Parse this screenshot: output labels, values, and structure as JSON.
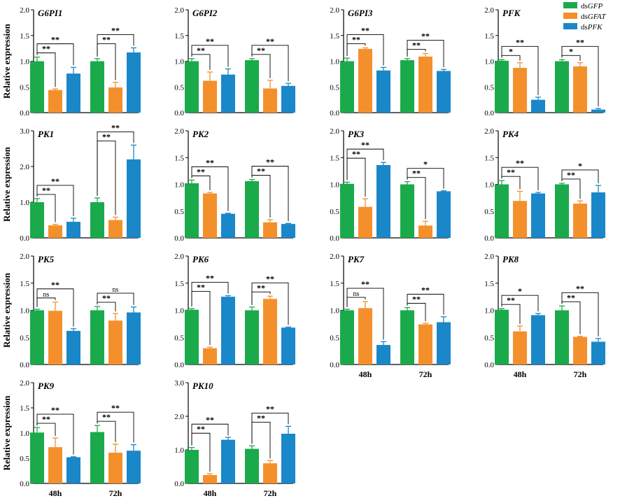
{
  "figure": {
    "ylabel": "Relative expression",
    "categories": [
      "48h",
      "72h"
    ],
    "legend": [
      {
        "pre": "ds",
        "italic": "GFP",
        "color": "#1aaa4b"
      },
      {
        "pre": "ds",
        "italic": "GFAT",
        "color": "#f4902c"
      },
      {
        "pre": "ds",
        "italic": "PFK",
        "color": "#1a87c9"
      }
    ]
  },
  "chart_data": [
    {
      "type": "bar",
      "title": "G6PI1",
      "ylim": [
        0,
        2
      ],
      "ticks": [
        "0.0",
        "0.5",
        "1.0",
        "1.5",
        "2.0"
      ],
      "categories": [
        "48h",
        "72h"
      ],
      "series": [
        {
          "name": "dsGFP",
          "values": [
            1.0,
            1.0
          ],
          "err": [
            0.08,
            0.05
          ]
        },
        {
          "name": "dsGFAT",
          "values": [
            0.44,
            0.49
          ],
          "err": [
            0.02,
            0.1
          ]
        },
        {
          "name": "dsPFK",
          "values": [
            0.76,
            1.17
          ],
          "err": [
            0.12,
            0.09
          ]
        }
      ],
      "sig": [
        [
          {
            "label": "**",
            "lvl": 1
          },
          {
            "label": "**",
            "lvl": 2
          }
        ],
        [
          {
            "label": "**",
            "lvl": 1
          },
          {
            "label": "**",
            "lvl": 2
          }
        ]
      ]
    },
    {
      "type": "bar",
      "title": "G6PI2",
      "ylim": [
        0,
        2
      ],
      "ticks": [
        "0.0",
        "0.5",
        "1.0",
        "1.5",
        "2.0"
      ],
      "categories": [
        "48h",
        "72h"
      ],
      "series": [
        {
          "name": "dsGFP",
          "values": [
            1.0,
            1.02
          ],
          "err": [
            0.05,
            0.03
          ]
        },
        {
          "name": "dsGFAT",
          "values": [
            0.62,
            0.47
          ],
          "err": [
            0.17,
            0.16
          ]
        },
        {
          "name": "dsPFK",
          "values": [
            0.74,
            0.52
          ],
          "err": [
            0.11,
            0.05
          ]
        }
      ],
      "sig": [
        [
          {
            "label": "**",
            "lvl": 1
          },
          {
            "label": "**",
            "lvl": 2
          }
        ],
        [
          {
            "label": "**",
            "lvl": 1
          },
          {
            "label": "**",
            "lvl": 2
          }
        ]
      ]
    },
    {
      "type": "bar",
      "title": "G6PI3",
      "ylim": [
        0,
        2
      ],
      "ticks": [
        "0.0",
        "0.5",
        "1.0",
        "1.5",
        "2.0"
      ],
      "categories": [
        "48h",
        "72h"
      ],
      "series": [
        {
          "name": "dsGFP",
          "values": [
            1.0,
            1.02
          ],
          "err": [
            0.06,
            0.03
          ]
        },
        {
          "name": "dsGFAT",
          "values": [
            1.24,
            1.09
          ],
          "err": [
            0.02,
            0.06
          ]
        },
        {
          "name": "dsPFK",
          "values": [
            0.82,
            0.81
          ],
          "err": [
            0.06,
            0.03
          ]
        }
      ],
      "sig": [
        [
          {
            "label": "**",
            "lvl": 1
          },
          {
            "label": "**",
            "lvl": 2
          }
        ],
        [
          {
            "label": "**",
            "lvl": 1
          },
          {
            "label": "**",
            "lvl": 2
          }
        ]
      ]
    },
    {
      "type": "bar",
      "title": "PFK",
      "ylim": [
        0,
        2
      ],
      "ticks": [
        "0.0",
        "0.5",
        "1.0",
        "1.5",
        "2.0"
      ],
      "categories": [
        "48h",
        "72h"
      ],
      "series": [
        {
          "name": "dsGFP",
          "values": [
            1.01,
            1.0
          ],
          "err": [
            0.02,
            0.03
          ]
        },
        {
          "name": "dsGFAT",
          "values": [
            0.87,
            0.9
          ],
          "err": [
            0.1,
            0.07
          ]
        },
        {
          "name": "dsPFK",
          "values": [
            0.25,
            0.06
          ],
          "err": [
            0.05,
            0.02
          ]
        }
      ],
      "sig": [
        [
          {
            "label": "*",
            "lvl": 1
          },
          {
            "label": "**",
            "lvl": 2
          }
        ],
        [
          {
            "label": "*",
            "lvl": 1
          },
          {
            "label": "**",
            "lvl": 2
          }
        ]
      ]
    },
    {
      "type": "bar",
      "title": "PK1",
      "ylim": [
        0,
        3
      ],
      "ticks": [
        "0.0",
        "1.0",
        "2.0",
        "3.0"
      ],
      "categories": [
        "48h",
        "72h"
      ],
      "series": [
        {
          "name": "dsGFP",
          "values": [
            1.0,
            1.0
          ],
          "err": [
            0.1,
            0.12
          ]
        },
        {
          "name": "dsGFAT",
          "values": [
            0.35,
            0.5
          ],
          "err": [
            0.03,
            0.08
          ]
        },
        {
          "name": "dsPFK",
          "values": [
            0.45,
            2.2
          ],
          "err": [
            0.1,
            0.4
          ]
        }
      ],
      "sig": [
        [
          {
            "label": "**",
            "lvl": 1
          },
          {
            "label": "**",
            "lvl": 2
          }
        ],
        [
          {
            "label": "**",
            "lvl": 1
          },
          {
            "label": "**",
            "lvl": 2
          }
        ]
      ]
    },
    {
      "type": "bar",
      "title": "PK2",
      "ylim": [
        0,
        2
      ],
      "ticks": [
        "0.0",
        "0.5",
        "1.0",
        "1.5",
        "2.0"
      ],
      "categories": [
        "48h",
        "72h"
      ],
      "series": [
        {
          "name": "dsGFP",
          "values": [
            1.02,
            1.06
          ],
          "err": [
            0.06,
            0.03
          ]
        },
        {
          "name": "dsGFAT",
          "values": [
            0.83,
            0.29
          ],
          "err": [
            0.02,
            0.05
          ]
        },
        {
          "name": "dsPFK",
          "values": [
            0.45,
            0.26
          ],
          "err": [
            0.01,
            0.01
          ]
        }
      ],
      "sig": [
        [
          {
            "label": "**",
            "lvl": 1
          },
          {
            "label": "**",
            "lvl": 2
          }
        ],
        [
          {
            "label": "**",
            "lvl": 1
          },
          {
            "label": "**",
            "lvl": 2
          }
        ]
      ]
    },
    {
      "type": "bar",
      "title": "PK3",
      "ylim": [
        0,
        2
      ],
      "ticks": [
        "0.0",
        "0.5",
        "1.0",
        "1.5",
        "2.0"
      ],
      "categories": [
        "48h",
        "72h"
      ],
      "series": [
        {
          "name": "dsGFP",
          "values": [
            1.01,
            1.0
          ],
          "err": [
            0.03,
            0.05
          ]
        },
        {
          "name": "dsGFAT",
          "values": [
            0.58,
            0.23
          ],
          "err": [
            0.15,
            0.08
          ]
        },
        {
          "name": "dsPFK",
          "values": [
            1.36,
            0.87
          ],
          "err": [
            0.05,
            0.01
          ]
        }
      ],
      "sig": [
        [
          {
            "label": "**",
            "lvl": 1
          },
          {
            "label": "**",
            "lvl": 2
          }
        ],
        [
          {
            "label": "**",
            "lvl": 1
          },
          {
            "label": "*",
            "lvl": 2
          }
        ]
      ]
    },
    {
      "type": "bar",
      "title": "PK4",
      "ylim": [
        0,
        2
      ],
      "ticks": [
        "0.0",
        "0.5",
        "1.0",
        "1.5",
        "2.0"
      ],
      "categories": [
        "48h",
        "72h"
      ],
      "series": [
        {
          "name": "dsGFP",
          "values": [
            1.0,
            1.0
          ],
          "err": [
            0.07,
            0.02
          ]
        },
        {
          "name": "dsGFAT",
          "values": [
            0.69,
            0.64
          ],
          "err": [
            0.18,
            0.05
          ]
        },
        {
          "name": "dsPFK",
          "values": [
            0.83,
            0.85
          ],
          "err": [
            0.02,
            0.13
          ]
        }
      ],
      "sig": [
        [
          {
            "label": "**",
            "lvl": 1
          },
          {
            "label": "**",
            "lvl": 2
          }
        ],
        [
          {
            "label": "**",
            "lvl": 1
          },
          {
            "label": "*",
            "lvl": 2
          }
        ]
      ]
    },
    {
      "type": "bar",
      "title": "PK5",
      "ylim": [
        0,
        2
      ],
      "ticks": [
        "0.0",
        "0.5",
        "1.0",
        "1.5",
        "2.0"
      ],
      "categories": [
        "48h",
        "72h"
      ],
      "series": [
        {
          "name": "dsGFP",
          "values": [
            1.0,
            1.0
          ],
          "err": [
            0.02,
            0.07
          ]
        },
        {
          "name": "dsGFAT",
          "values": [
            0.99,
            0.81
          ],
          "err": [
            0.16,
            0.13
          ]
        },
        {
          "name": "dsPFK",
          "values": [
            0.62,
            0.96
          ],
          "err": [
            0.04,
            0.1
          ]
        }
      ],
      "sig": [
        [
          {
            "label": "ns",
            "lvl": 1
          },
          {
            "label": "**",
            "lvl": 2
          }
        ],
        [
          {
            "label": "**",
            "lvl": 1
          },
          {
            "label": "ns",
            "lvl": 2
          }
        ]
      ]
    },
    {
      "type": "bar",
      "title": "PK6",
      "ylim": [
        0,
        2
      ],
      "ticks": [
        "0.0",
        "0.5",
        "1.0",
        "1.5",
        "2.0"
      ],
      "categories": [
        "48h",
        "72h"
      ],
      "series": [
        {
          "name": "dsGFP",
          "values": [
            1.01,
            1.0
          ],
          "err": [
            0.02,
            0.06
          ]
        },
        {
          "name": "dsGFAT",
          "values": [
            0.3,
            1.21
          ],
          "err": [
            0.02,
            0.05
          ]
        },
        {
          "name": "dsPFK",
          "values": [
            1.25,
            0.68
          ],
          "err": [
            0.02,
            0.01
          ]
        }
      ],
      "sig": [
        [
          {
            "label": "**",
            "lvl": 1
          },
          {
            "label": "**",
            "lvl": 2
          }
        ],
        [
          {
            "label": "**",
            "lvl": 1
          },
          {
            "label": "**",
            "lvl": 2
          }
        ]
      ]
    },
    {
      "type": "bar",
      "title": "PK7",
      "ylim": [
        0,
        2
      ],
      "ticks": [
        "0.0",
        "0.5",
        "1.0",
        "1.5",
        "2.0"
      ],
      "categories": [
        "48h",
        "72h"
      ],
      "series": [
        {
          "name": "dsGFP",
          "values": [
            1.0,
            1.0
          ],
          "err": [
            0.02,
            0.05
          ]
        },
        {
          "name": "dsGFAT",
          "values": [
            1.04,
            0.74
          ],
          "err": [
            0.12,
            0.02
          ]
        },
        {
          "name": "dsPFK",
          "values": [
            0.36,
            0.78
          ],
          "err": [
            0.06,
            0.1
          ]
        }
      ],
      "sig": [
        [
          {
            "label": "ns",
            "lvl": 1
          },
          {
            "label": "**",
            "lvl": 2
          }
        ],
        [
          {
            "label": "**",
            "lvl": 1
          },
          {
            "label": "**",
            "lvl": 2
          }
        ]
      ]
    },
    {
      "type": "bar",
      "title": "PK8",
      "ylim": [
        0,
        2
      ],
      "ticks": [
        "0.0",
        "0.5",
        "1.0",
        "1.5",
        "2.0"
      ],
      "categories": [
        "48h",
        "72h"
      ],
      "series": [
        {
          "name": "dsGFP",
          "values": [
            1.01,
            1.0
          ],
          "err": [
            0.02,
            0.08
          ]
        },
        {
          "name": "dsGFAT",
          "values": [
            0.61,
            0.51
          ],
          "err": [
            0.1,
            0.01
          ]
        },
        {
          "name": "dsPFK",
          "values": [
            0.91,
            0.42
          ],
          "err": [
            0.03,
            0.06
          ]
        }
      ],
      "sig": [
        [
          {
            "label": "**",
            "lvl": 1
          },
          {
            "label": "*",
            "lvl": 2
          }
        ],
        [
          {
            "label": "**",
            "lvl": 1
          },
          {
            "label": "**",
            "lvl": 2
          }
        ]
      ]
    },
    {
      "type": "bar",
      "title": "PK9",
      "ylim": [
        0,
        2
      ],
      "ticks": [
        "0.0",
        "0.5",
        "1.0",
        "1.5",
        "2.0"
      ],
      "categories": [
        "48h",
        "72h"
      ],
      "series": [
        {
          "name": "dsGFP",
          "values": [
            1.01,
            1.02
          ],
          "err": [
            0.1,
            0.13
          ]
        },
        {
          "name": "dsGFAT",
          "values": [
            0.72,
            0.61
          ],
          "err": [
            0.18,
            0.17
          ]
        },
        {
          "name": "dsPFK",
          "values": [
            0.52,
            0.65
          ],
          "err": [
            0.01,
            0.12
          ]
        }
      ],
      "sig": [
        [
          {
            "label": "**",
            "lvl": 1
          },
          {
            "label": "**",
            "lvl": 2
          }
        ],
        [
          {
            "label": "**",
            "lvl": 1
          },
          {
            "label": "**",
            "lvl": 2
          }
        ]
      ]
    },
    {
      "type": "bar",
      "title": "PK10",
      "ylim": [
        0,
        3
      ],
      "ticks": [
        "0.0",
        "1.0",
        "2.0",
        "3.0"
      ],
      "categories": [
        "48h",
        "72h"
      ],
      "series": [
        {
          "name": "dsGFP",
          "values": [
            1.0,
            1.03
          ],
          "err": [
            0.07,
            0.09
          ]
        },
        {
          "name": "dsGFAT",
          "values": [
            0.25,
            0.6
          ],
          "err": [
            0.04,
            0.08
          ]
        },
        {
          "name": "dsPFK",
          "values": [
            1.3,
            1.48
          ],
          "err": [
            0.07,
            0.22
          ]
        }
      ],
      "sig": [
        [
          {
            "label": "**",
            "lvl": 1
          },
          {
            "label": "**",
            "lvl": 2
          }
        ],
        [
          {
            "label": "**",
            "lvl": 1
          },
          {
            "label": "**",
            "lvl": 2
          }
        ]
      ]
    }
  ]
}
